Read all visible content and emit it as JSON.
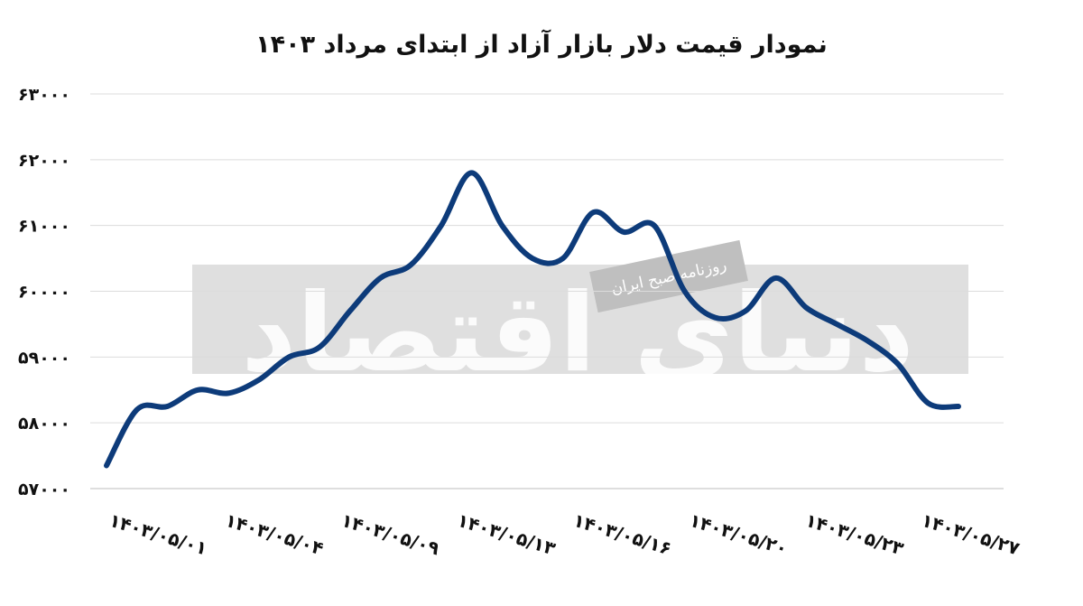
{
  "chart_data": {
    "type": "line",
    "title": "نمودار قیمت دلار بازار آزاد از ابتدای مرداد ۱۴۰۳",
    "xlabel": "",
    "ylabel": "",
    "x_tick_labels": [
      "۱۴۰۳/۰۵/۰۱",
      "۱۴۰۳/۰۵/۰۴",
      "۱۴۰۳/۰۵/۰۹",
      "۱۴۰۳/۰۵/۱۳",
      "۱۴۰۳/۰۵/۱۶",
      "۱۴۰۳/۰۵/۲۰",
      "۱۴۰۳/۰۵/۲۳",
      "۱۴۰۳/۰۵/۲۷"
    ],
    "y_tick_labels": [
      "۵۷۰۰۰",
      "۵۸۰۰۰",
      "۵۹۰۰۰",
      "۶۰۰۰۰",
      "۶۱۰۰۰",
      "۶۲۰۰۰",
      "۶۳۰۰۰"
    ],
    "ylim": [
      57000,
      63000
    ],
    "grid": true,
    "legend": "none",
    "line_color": "#0d3b7a",
    "series": [
      {
        "values": [
          57350,
          58200,
          58250,
          58500,
          58450,
          58650,
          59000,
          59150,
          59700,
          60200,
          60400,
          61000,
          61800,
          61000,
          60500,
          60500,
          61200,
          60900,
          61000,
          60000,
          59600,
          59700,
          60200,
          59750,
          59500,
          59250,
          58900,
          58300,
          58250
        ]
      }
    ]
  },
  "watermark": {
    "main_text": "دنیای اقتصاد",
    "sub_text": "روزنامه صبح ایران"
  }
}
